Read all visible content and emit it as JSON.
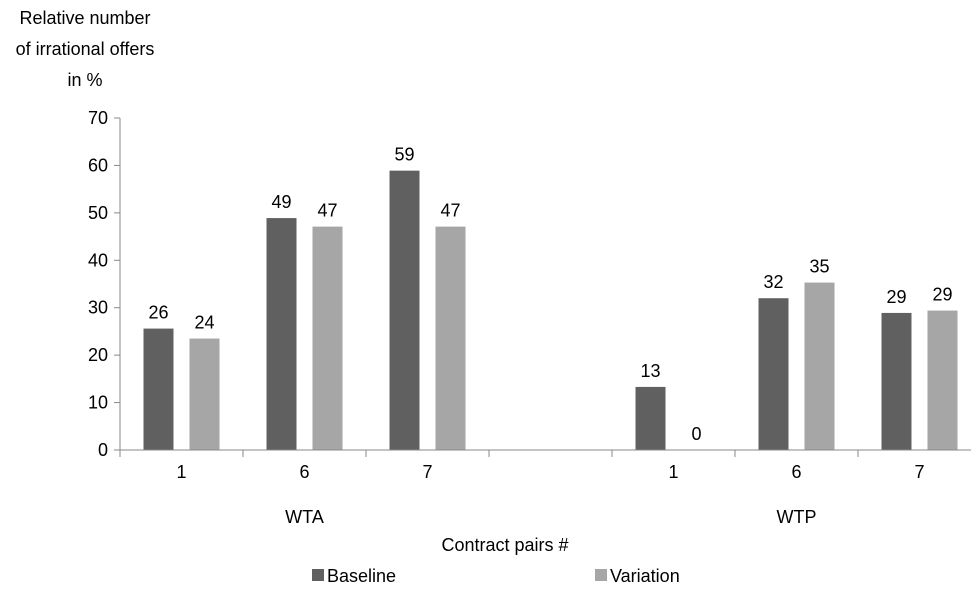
{
  "chart_data": {
    "type": "bar",
    "ylabel_lines": [
      "Relative number",
      "of irrational offers",
      "in %"
    ],
    "xlabel": "Contract pairs #",
    "ylim": [
      0,
      70
    ],
    "yticks": [
      0,
      10,
      20,
      30,
      40,
      50,
      60,
      70
    ],
    "groups": [
      {
        "name": "WTA",
        "categories": [
          "1",
          "6",
          "7"
        ]
      },
      {
        "name": "WTP",
        "categories": [
          "1",
          "6",
          "7"
        ]
      }
    ],
    "series": [
      {
        "name": "Baseline",
        "color": "#606060",
        "values": [
          25.6,
          48.9,
          58.9,
          13.3,
          32.0,
          28.9
        ],
        "labels": [
          "26",
          "49",
          "59",
          "13",
          "32",
          "29"
        ]
      },
      {
        "name": "Variation",
        "color": "#a6a6a6",
        "values": [
          23.5,
          47.1,
          47.1,
          0,
          35.3,
          29.4
        ],
        "labels": [
          "24",
          "47",
          "47",
          "0",
          "35",
          "29"
        ]
      }
    ],
    "legend_position": "bottom",
    "grid": false
  }
}
